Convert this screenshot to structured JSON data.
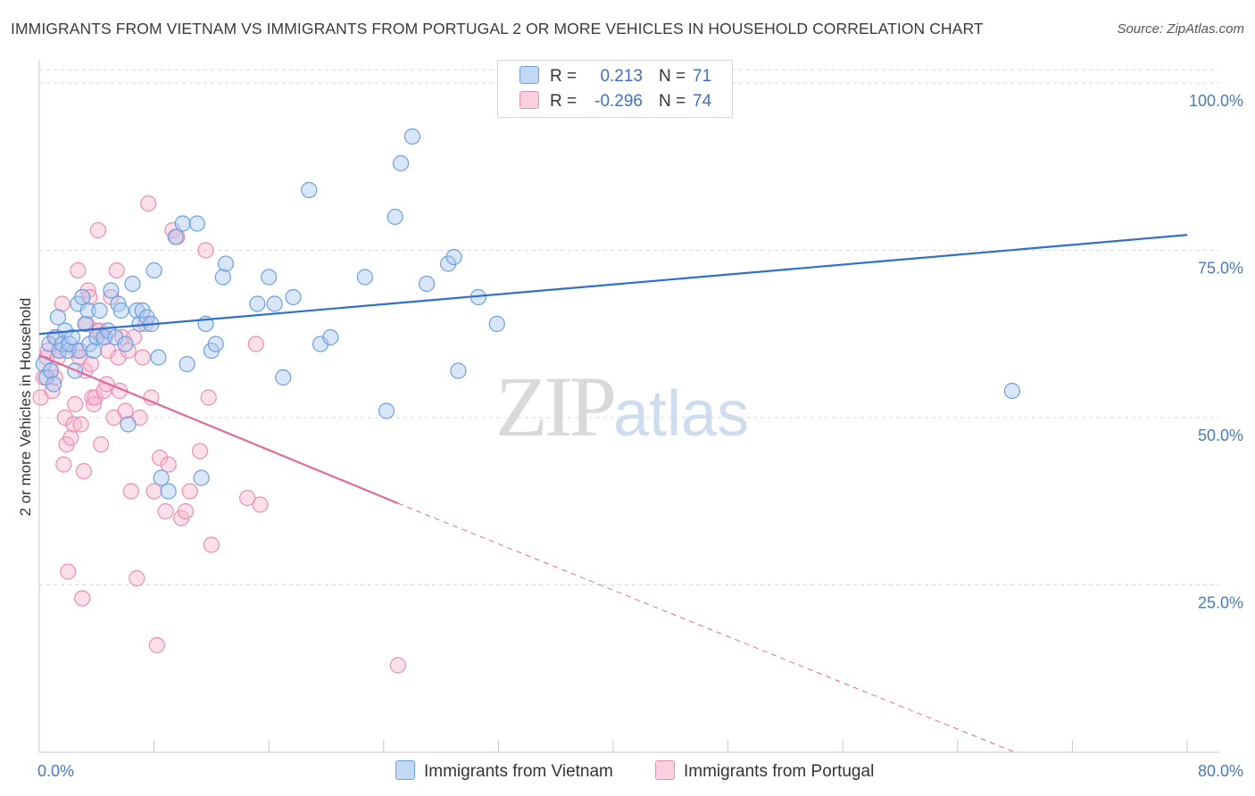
{
  "header": {
    "title": "IMMIGRANTS FROM VIETNAM VS IMMIGRANTS FROM PORTUGAL 2 OR MORE VEHICLES IN HOUSEHOLD CORRELATION CHART",
    "source": "Source: ZipAtlas.com"
  },
  "watermark": {
    "zip": "ZIP",
    "atlas": "atlas"
  },
  "legend": {
    "vietnam": {
      "r_label": "R =",
      "r_value": "0.213",
      "n_label": "N =",
      "n_value": "71"
    },
    "portugal": {
      "r_label": "R =",
      "r_value": "-0.296",
      "n_label": "N =",
      "n_value": "74"
    }
  },
  "colors": {
    "vietnam_fill": "#aac8f0",
    "vietnam_stroke": "#6b9fe0",
    "vietnam_line": "#2f6fcf",
    "portugal_fill": "#f7b8cf",
    "portugal_stroke": "#ec8db1",
    "portugal_line": "#e06b98",
    "grid": "#d9d9d9",
    "tick_text": "#4a78c2"
  },
  "chart_data": {
    "type": "scatter",
    "title": "IMMIGRANTS FROM VIETNAM VS IMMIGRANTS FROM PORTUGAL 2 OR MORE VEHICLES IN HOUSEHOLD CORRELATION CHART",
    "xlabel": "",
    "ylabel": "2 or more Vehicles in Household",
    "xlim": [
      0,
      80
    ],
    "ylim": [
      0,
      102
    ],
    "x_tick_labels": [
      "0.0%",
      "80.0%"
    ],
    "y_ticks": [
      25,
      50,
      75,
      100
    ],
    "y_tick_labels": [
      "25.0%",
      "50.0%",
      "75.0%",
      "100.0%"
    ],
    "grid": true,
    "legend_position": "top-center",
    "series": [
      {
        "name": "Immigrants from Vietnam",
        "color": "#aac8f0",
        "r": 0.213,
        "n": 71,
        "trend": {
          "x": [
            0,
            80
          ],
          "y": [
            62.5,
            77.3
          ],
          "dashed_from": null
        },
        "points": [
          [
            0.3,
            58
          ],
          [
            0.5,
            56
          ],
          [
            0.7,
            61
          ],
          [
            0.8,
            57
          ],
          [
            1.0,
            55
          ],
          [
            1.1,
            62
          ],
          [
            1.3,
            65
          ],
          [
            1.4,
            60
          ],
          [
            1.6,
            61
          ],
          [
            1.8,
            63
          ],
          [
            2.0,
            60
          ],
          [
            2.1,
            61
          ],
          [
            2.3,
            62
          ],
          [
            2.5,
            57
          ],
          [
            2.7,
            67
          ],
          [
            2.8,
            60
          ],
          [
            3.0,
            68
          ],
          [
            3.2,
            64
          ],
          [
            3.4,
            66
          ],
          [
            3.5,
            61
          ],
          [
            3.8,
            60
          ],
          [
            4.0,
            62
          ],
          [
            4.2,
            66
          ],
          [
            4.5,
            62
          ],
          [
            4.8,
            63
          ],
          [
            5.0,
            69
          ],
          [
            5.3,
            62
          ],
          [
            5.5,
            67
          ],
          [
            5.7,
            66
          ],
          [
            6.0,
            61
          ],
          [
            6.2,
            49
          ],
          [
            6.5,
            70
          ],
          [
            6.8,
            66
          ],
          [
            7.0,
            64
          ],
          [
            7.2,
            66
          ],
          [
            7.5,
            65
          ],
          [
            8.0,
            72
          ],
          [
            7.8,
            64
          ],
          [
            8.3,
            59
          ],
          [
            8.5,
            41
          ],
          [
            9.0,
            39
          ],
          [
            9.5,
            77
          ],
          [
            10.0,
            79
          ],
          [
            10.3,
            58
          ],
          [
            11.0,
            79
          ],
          [
            11.3,
            41
          ],
          [
            11.6,
            64
          ],
          [
            12.0,
            60
          ],
          [
            12.3,
            61
          ],
          [
            12.8,
            71
          ],
          [
            13.0,
            73
          ],
          [
            15.2,
            67
          ],
          [
            16.0,
            71
          ],
          [
            16.4,
            67
          ],
          [
            17.0,
            56
          ],
          [
            17.7,
            68
          ],
          [
            18.8,
            84
          ],
          [
            19.6,
            61
          ],
          [
            20.3,
            62
          ],
          [
            22.7,
            71
          ],
          [
            24.2,
            51
          ],
          [
            24.8,
            80
          ],
          [
            25.2,
            88
          ],
          [
            26.0,
            92
          ],
          [
            27.0,
            70
          ],
          [
            28.5,
            73
          ],
          [
            28.9,
            74
          ],
          [
            29.2,
            57
          ],
          [
            30.6,
            68
          ],
          [
            31.9,
            64
          ],
          [
            67.8,
            54
          ]
        ]
      },
      {
        "name": "Immigrants from Portugal",
        "color": "#f7b8cf",
        "r": -0.296,
        "n": 74,
        "trend": {
          "x": [
            0,
            25,
            68
          ],
          "y": [
            59.3,
            37.2,
            0
          ],
          "dashed_from": 25
        },
        "points": [
          [
            0.1,
            53
          ],
          [
            0.3,
            56
          ],
          [
            0.5,
            59
          ],
          [
            0.6,
            60
          ],
          [
            0.8,
            57
          ],
          [
            0.9,
            54
          ],
          [
            1.1,
            56
          ],
          [
            1.2,
            62
          ],
          [
            1.3,
            59
          ],
          [
            1.4,
            60
          ],
          [
            1.6,
            67
          ],
          [
            1.7,
            43
          ],
          [
            1.8,
            50
          ],
          [
            1.9,
            46
          ],
          [
            2.0,
            27
          ],
          [
            2.2,
            47
          ],
          [
            2.4,
            49
          ],
          [
            2.5,
            52
          ],
          [
            2.6,
            60
          ],
          [
            2.7,
            72
          ],
          [
            2.8,
            59
          ],
          [
            2.9,
            49
          ],
          [
            3.0,
            23
          ],
          [
            3.1,
            42
          ],
          [
            3.2,
            57
          ],
          [
            3.3,
            64
          ],
          [
            3.4,
            69
          ],
          [
            3.5,
            68
          ],
          [
            3.6,
            58
          ],
          [
            3.7,
            53
          ],
          [
            3.8,
            52
          ],
          [
            3.9,
            53
          ],
          [
            4.0,
            63
          ],
          [
            4.1,
            78
          ],
          [
            4.2,
            63
          ],
          [
            4.3,
            46
          ],
          [
            4.5,
            54
          ],
          [
            4.6,
            62
          ],
          [
            4.7,
            55
          ],
          [
            4.8,
            60
          ],
          [
            5.0,
            68
          ],
          [
            5.2,
            50
          ],
          [
            5.4,
            72
          ],
          [
            5.5,
            59
          ],
          [
            5.6,
            54
          ],
          [
            5.8,
            62
          ],
          [
            6.0,
            51
          ],
          [
            6.2,
            60
          ],
          [
            6.4,
            39
          ],
          [
            6.6,
            62
          ],
          [
            6.8,
            26
          ],
          [
            7.0,
            50
          ],
          [
            7.2,
            59
          ],
          [
            7.4,
            64
          ],
          [
            7.6,
            82
          ],
          [
            7.8,
            53
          ],
          [
            8.0,
            39
          ],
          [
            8.2,
            16
          ],
          [
            8.4,
            44
          ],
          [
            8.8,
            36
          ],
          [
            9.0,
            43
          ],
          [
            9.3,
            78
          ],
          [
            9.6,
            77
          ],
          [
            9.9,
            35
          ],
          [
            10.2,
            36
          ],
          [
            10.5,
            39
          ],
          [
            11.2,
            45
          ],
          [
            11.6,
            75
          ],
          [
            11.8,
            53
          ],
          [
            12.0,
            31
          ],
          [
            14.5,
            38
          ],
          [
            15.1,
            61
          ],
          [
            15.4,
            37
          ],
          [
            25.0,
            13
          ]
        ]
      }
    ]
  },
  "bottom_legend": {
    "vietnam_label": "Immigrants from Vietnam",
    "portugal_label": "Immigrants from Portugal"
  }
}
